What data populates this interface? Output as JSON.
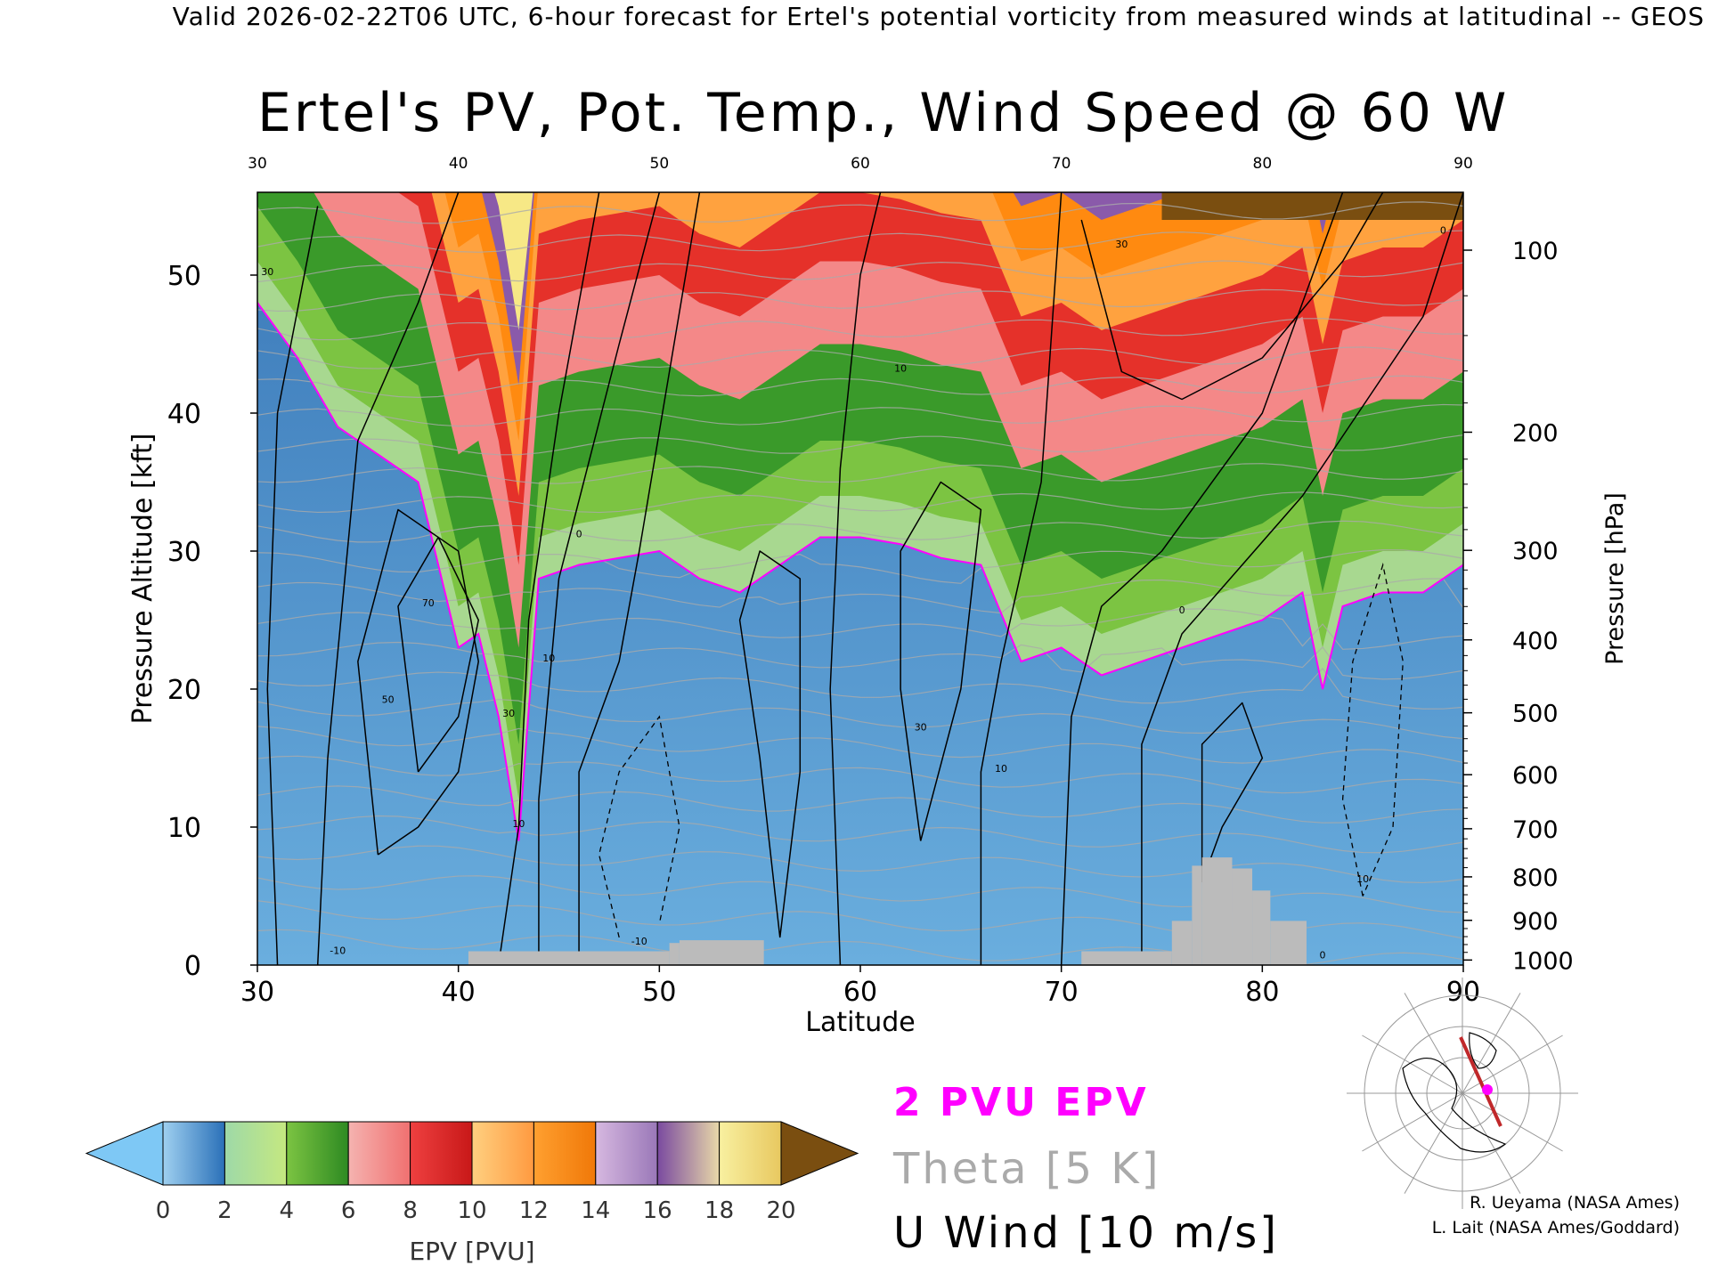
{
  "header": {
    "top_line": "Valid 2026-02-22T06 UTC, 6-hour forecast for Ertel's potential vorticity from measured winds at latitudinal -- GEOS",
    "title": "Ertel's PV, Pot. Temp., Wind Speed @ 60 W"
  },
  "chart_data": {
    "type": "heatmap",
    "title": "Ertel's PV, Pot. Temp., Wind Speed @ 60 W",
    "xlabel": "Latitude",
    "ylabel": "Pressure Altitude [kft]",
    "y2label": "Pressure [hPa]",
    "xlim": [
      30,
      90
    ],
    "ylim": [
      0,
      56
    ],
    "x_ticks": [
      "30",
      "40",
      "50",
      "60",
      "70",
      "80",
      "90"
    ],
    "y_ticks": [
      "0",
      "10",
      "20",
      "30",
      "40",
      "50"
    ],
    "pressure_ticks": [
      {
        "label": "100",
        "hpa": 100
      },
      {
        "label": "200",
        "hpa": 200
      },
      {
        "label": "300",
        "hpa": 300
      },
      {
        "label": "400",
        "hpa": 400
      },
      {
        "label": "500",
        "hpa": 500
      },
      {
        "label": "600",
        "hpa": 600
      },
      {
        "label": "700",
        "hpa": 700
      },
      {
        "label": "800",
        "hpa": 800
      },
      {
        "label": "900",
        "hpa": 900
      },
      {
        "label": "1000",
        "hpa": 1000
      }
    ],
    "tropopause_2pvu_kft": [
      [
        30,
        48
      ],
      [
        32,
        44
      ],
      [
        34,
        39
      ],
      [
        36,
        37
      ],
      [
        38,
        35
      ],
      [
        39,
        29
      ],
      [
        40,
        23
      ],
      [
        41,
        24
      ],
      [
        42,
        18
      ],
      [
        43,
        9
      ],
      [
        44,
        28
      ],
      [
        46,
        29
      ],
      [
        48,
        29.5
      ],
      [
        50,
        30
      ],
      [
        52,
        28
      ],
      [
        54,
        27
      ],
      [
        56,
        29
      ],
      [
        58,
        31
      ],
      [
        60,
        31
      ],
      [
        62,
        30.5
      ],
      [
        64,
        29.5
      ],
      [
        66,
        29
      ],
      [
        68,
        22
      ],
      [
        70,
        23
      ],
      [
        72,
        21
      ],
      [
        74,
        22
      ],
      [
        76,
        23
      ],
      [
        78,
        24
      ],
      [
        80,
        25
      ],
      [
        82,
        27
      ],
      [
        83,
        20
      ],
      [
        84,
        26
      ],
      [
        86,
        27
      ],
      [
        88,
        27
      ],
      [
        90,
        29
      ]
    ],
    "pv_layers_top_kft": [
      {
        "pvu": 4,
        "color": "#7cc442",
        "offset": 3
      },
      {
        "pvu": 6,
        "color": "#3a9a2a",
        "offset": 7
      },
      {
        "pvu": 8,
        "color": "#f48888",
        "offset": 14
      },
      {
        "pvu": 10,
        "color": "#e5312a",
        "offset": 20
      },
      {
        "pvu": 12,
        "color": "#ffa23f",
        "offset": 25
      },
      {
        "pvu": 14,
        "color": "#ff8a10",
        "offset": 29
      },
      {
        "pvu": 16,
        "color": "#8a5aaa",
        "offset": 33
      },
      {
        "pvu": 18,
        "color": "#f7e886",
        "offset": 37
      }
    ],
    "terrain": [
      {
        "lat0": 40.5,
        "lat1": 50.5,
        "kft": 1
      },
      {
        "lat0": 50.5,
        "lat1": 51.0,
        "kft": 1.6
      },
      {
        "lat0": 51.0,
        "lat1": 55.2,
        "kft": 1.8
      },
      {
        "lat0": 71.0,
        "lat1": 75.5,
        "kft": 1.0
      },
      {
        "lat0": 75.5,
        "lat1": 76.5,
        "kft": 3.2
      },
      {
        "lat0": 76.5,
        "lat1": 77.0,
        "kft": 7.2
      },
      {
        "lat0": 77.0,
        "lat1": 78.5,
        "kft": 7.8
      },
      {
        "lat0": 78.5,
        "lat1": 79.5,
        "kft": 7.0
      },
      {
        "lat0": 79.5,
        "lat1": 80.4,
        "kft": 5.4
      },
      {
        "lat0": 80.4,
        "lat1": 82.2,
        "kft": 3.2
      }
    ],
    "u_wind_labels": [
      {
        "text": "30",
        "lat": 30.5,
        "kft": 50
      },
      {
        "text": "70",
        "lat": 38.5,
        "kft": 26
      },
      {
        "text": "50",
        "lat": 36.5,
        "kft": 19
      },
      {
        "text": "30",
        "lat": 42.5,
        "kft": 18
      },
      {
        "text": "10",
        "lat": 43,
        "kft": 10
      },
      {
        "text": "10",
        "lat": 44.5,
        "kft": 22
      },
      {
        "text": "0",
        "lat": 46,
        "kft": 31
      },
      {
        "text": "10",
        "lat": 62,
        "kft": 43
      },
      {
        "text": "30",
        "lat": 63,
        "kft": 17
      },
      {
        "text": "10",
        "lat": 67,
        "kft": 14
      },
      {
        "text": "0",
        "lat": 76,
        "kft": 25.5
      },
      {
        "text": "30",
        "lat": 73,
        "kft": 52
      },
      {
        "text": "10",
        "lat": 85,
        "kft": 6
      },
      {
        "text": "-10",
        "lat": 49,
        "kft": 1.5
      },
      {
        "text": "-10",
        "lat": 34,
        "kft": 0.8
      },
      {
        "text": "0",
        "lat": 83,
        "kft": 0.5
      },
      {
        "text": "0",
        "lat": 89,
        "kft": 53
      }
    ],
    "colorbar": {
      "label": "EPV [PVU]",
      "ticks": [
        "0",
        "2",
        "4",
        "6",
        "8",
        "10",
        "12",
        "14",
        "16",
        "18",
        "20"
      ],
      "below_color": "#7ec8f5",
      "above_color": "#7a4e10",
      "bins": [
        {
          "from": 0,
          "to": 2,
          "colors": [
            "#9fd0f0",
            "#2a70b8"
          ]
        },
        {
          "from": 2,
          "to": 4,
          "colors": [
            "#9ed9a8",
            "#c5e880"
          ]
        },
        {
          "from": 4,
          "to": 6,
          "colors": [
            "#7cc442",
            "#2e8a22"
          ]
        },
        {
          "from": 6,
          "to": 8,
          "colors": [
            "#f5b3b0",
            "#f07070"
          ]
        },
        {
          "from": 8,
          "to": 10,
          "colors": [
            "#ee4040",
            "#c81818"
          ]
        },
        {
          "from": 10,
          "to": 12,
          "colors": [
            "#ffd080",
            "#ff9a40"
          ]
        },
        {
          "from": 12,
          "to": 14,
          "colors": [
            "#ffa030",
            "#f07808"
          ]
        },
        {
          "from": 14,
          "to": 16,
          "colors": [
            "#d6b8e0",
            "#9a78b8"
          ]
        },
        {
          "from": 16,
          "to": 18,
          "colors": [
            "#7a4aa0",
            "#e8d8a8"
          ]
        },
        {
          "from": 18,
          "to": 20,
          "colors": [
            "#f8f0a0",
            "#e8c860"
          ]
        }
      ]
    },
    "legend": [
      {
        "label": "2 PVU EPV",
        "color": "#ff00ff"
      },
      {
        "label": "Theta [5 K]",
        "color": "#aaaaaa"
      },
      {
        "label": "U Wind [10 m/s]",
        "color": "#000000"
      }
    ]
  },
  "legend_text": {
    "pvu": "2 PVU EPV",
    "theta": "Theta [5 K]",
    "u": "U Wind [10 m/s]"
  },
  "credits": {
    "line1": "R. Ueyama (NASA Ames)",
    "line2": "L. Lait (NASA Ames/Goddard)"
  },
  "colors": {
    "tropopause": "#ff00ff",
    "theta": "#aaaaaa",
    "terrain": "#bbbbbb",
    "troposphere": "#4a8ec8"
  }
}
